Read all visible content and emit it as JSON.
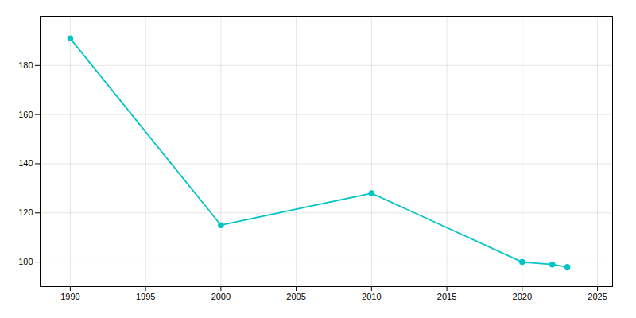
{
  "chart_data": {
    "type": "line",
    "x": [
      1990,
      2000,
      2010,
      2020,
      2022,
      2023
    ],
    "values": [
      191,
      115,
      128,
      100,
      99,
      98
    ],
    "color": "#00C5C5",
    "marker": "circle",
    "xlim": [
      1988,
      2026
    ],
    "ylim": [
      90,
      200
    ],
    "xticks": [
      1990,
      1995,
      2000,
      2005,
      2010,
      2015,
      2020,
      2025
    ],
    "yticks": [
      100,
      120,
      140,
      160,
      180
    ],
    "grid": true
  }
}
